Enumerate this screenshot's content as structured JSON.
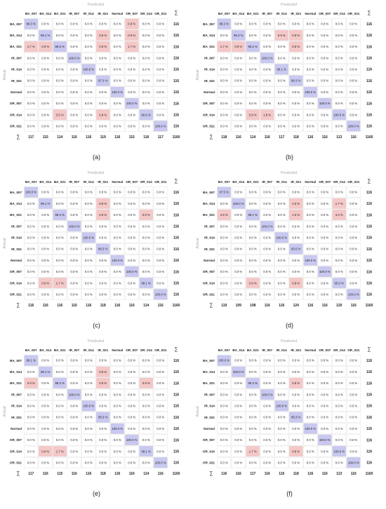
{
  "figure": {
    "classes": [
      "BA_007",
      "BA_014",
      "BA_021",
      "IR_007",
      "IR_014",
      "IR_021",
      "Normal",
      "OR_007",
      "OR_014",
      "OR_021"
    ],
    "predicted_label": "Predicted",
    "actual_label": "Actual",
    "sigma": "∑",
    "colors": {
      "diagonal": "#c8c8f0",
      "offdiagonal": "#f5c8c8",
      "grid": "#dddddd",
      "text": "#222222",
      "muted": "#aaaaaa"
    }
  },
  "chart_data": [
    {
      "type": "heatmap",
      "caption": "(a)",
      "title": "Predicted",
      "xlabel": "Predicted",
      "ylabel": "Actual",
      "values": [
        [
          "98.3 %",
          "0.0 %",
          "0.0 %",
          "0.0 %",
          "0.0 %",
          "0.0 %",
          "0.0 %",
          "0.9 %",
          "0.0 %",
          "0.0 %"
        ],
        [
          "0.0 %",
          "99.1 %",
          "0.0 %",
          "0.0 %",
          "0.0 %",
          "0.8 %",
          "0.0 %",
          "0.9 %",
          "0.0 %",
          "0.0 %"
        ],
        [
          "1.7 %",
          "0.9 %",
          "96.5 %",
          "0.0 %",
          "0.0 %",
          "0.8 %",
          "0.0 %",
          "1.7 %",
          "0.0 %",
          "0.0 %"
        ],
        [
          "0.0 %",
          "0.0 %",
          "0.0 %",
          "100.0 %",
          "0.0 %",
          "0.0 %",
          "0.0 %",
          "0.0 %",
          "0.0 %",
          "0.0 %"
        ],
        [
          "0.0 %",
          "0.0 %",
          "0.0 %",
          "0.0 %",
          "100.0 %",
          "0.0 %",
          "0.0 %",
          "0.0 %",
          "0.0 %",
          "0.0 %"
        ],
        [
          "0.0 %",
          "0.0 %",
          "0.0 %",
          "0.0 %",
          "0.0 %",
          "97.3 %",
          "0.0 %",
          "0.0 %",
          "0.0 %",
          "0.0 %"
        ],
        [
          "0.0 %",
          "0.0 %",
          "0.0 %",
          "0.0 %",
          "0.0 %",
          "0.0 %",
          "100.0 %",
          "0.0 %",
          "0.0 %",
          "0.0 %"
        ],
        [
          "0.0 %",
          "0.0 %",
          "0.0 %",
          "0.0 %",
          "0.0 %",
          "0.0 %",
          "0.0 %",
          "100.0 %",
          "0.0 %",
          "0.0 %"
        ],
        [
          "0.0 %",
          "0.0 %",
          "3.5 %",
          "0.0 %",
          "0.0 %",
          "0.8 %",
          "0.0 %",
          "0.0 %",
          "96.5 %",
          "0.0 %"
        ],
        [
          "0.0 %",
          "0.0 %",
          "0.0 %",
          "0.0 %",
          "0.0 %",
          "0.0 %",
          "0.0 %",
          "0.0 %",
          "0.0 %",
          "100.0 %"
        ]
      ],
      "row_totals": [
        "116",
        "116",
        "116",
        "116",
        "116",
        "116",
        "116",
        "116",
        "116",
        "116"
      ],
      "col_totals": [
        "117",
        "115",
        "114",
        "116",
        "116",
        "119",
        "116",
        "115",
        "116",
        "117"
      ],
      "grand_total": "1160"
    },
    {
      "type": "heatmap",
      "caption": "(b)",
      "title": "Predicted",
      "xlabel": "Predicted",
      "ylabel": "Actual",
      "values": [
        [
          "98.3 %",
          "0.0 %",
          "0.0 %",
          "0.0 %",
          "0.0 %",
          "0.0 %",
          "0.0 %",
          "0.0 %",
          "0.0 %",
          "0.0 %"
        ],
        [
          "0.0 %",
          "98.3 %",
          "0.0 %",
          "0.0 %",
          "0.9 %",
          "0.8 %",
          "0.0 %",
          "0.0 %",
          "0.0 %",
          "0.0 %"
        ],
        [
          "1.7 %",
          "0.9 %",
          "98.2 %",
          "0.0 %",
          "0.0 %",
          "0.8 %",
          "0.0 %",
          "0.0 %",
          "0.0 %",
          "0.0 %"
        ],
        [
          "0.0 %",
          "0.0 %",
          "0.0 %",
          "100.0 %",
          "0.0 %",
          "0.0 %",
          "0.0 %",
          "0.0 %",
          "0.0 %",
          "0.0 %"
        ],
        [
          "0.0 %",
          "0.0 %",
          "0.0 %",
          "0.0 %",
          "99.1 %",
          "0.0 %",
          "0.0 %",
          "0.0 %",
          "0.0 %",
          "0.0 %"
        ],
        [
          "0.0 %",
          "0.0 %",
          "0.0 %",
          "0.0 %",
          "0.0 %",
          "98.3 %",
          "0.0 %",
          "0.0 %",
          "0.0 %",
          "0.0 %"
        ],
        [
          "0.0 %",
          "0.0 %",
          "0.0 %",
          "0.0 %",
          "0.0 %",
          "0.0 %",
          "100.0 %",
          "0.0 %",
          "0.0 %",
          "0.0 %"
        ],
        [
          "0.0 %",
          "0.0 %",
          "0.0 %",
          "0.0 %",
          "0.0 %",
          "0.0 %",
          "0.0 %",
          "100.0 %",
          "0.0 %",
          "0.0 %"
        ],
        [
          "0.0 %",
          "0.0 %",
          "0.9 %",
          "1.8 %",
          "0.0 %",
          "0.0 %",
          "0.0 %",
          "0.0 %",
          "100.0 %",
          "0.0 %"
        ],
        [
          "0.0 %",
          "0.0 %",
          "0.0 %",
          "0.0 %",
          "0.0 %",
          "0.0 %",
          "0.0 %",
          "0.0 %",
          "0.0 %",
          "100.0 %"
        ]
      ],
      "row_totals": [
        "116",
        "116",
        "116",
        "116",
        "116",
        "116",
        "116",
        "116",
        "116",
        "116"
      ],
      "col_totals": [
        "118",
        "116",
        "114",
        "116",
        "117",
        "118",
        "116",
        "116",
        "113",
        "116"
      ],
      "grand_total": "1160"
    },
    {
      "type": "heatmap",
      "caption": "(c)",
      "title": "Predicted",
      "xlabel": "Predicted",
      "ylabel": "Actual",
      "values": [
        [
          "100.0 %",
          "0.0 %",
          "0.0 %",
          "0.0 %",
          "0.0 %",
          "0.0 %",
          "0.0 %",
          "0.0 %",
          "0.0 %",
          "0.0 %"
        ],
        [
          "0.0 %",
          "99.1 %",
          "0.0 %",
          "0.0 %",
          "0.0 %",
          "0.8 %",
          "0.0 %",
          "0.0 %",
          "0.0 %",
          "0.0 %"
        ],
        [
          "0.0 %",
          "0.0 %",
          "98.3 %",
          "0.0 %",
          "0.0 %",
          "0.8 %",
          "0.0 %",
          "0.0 %",
          "0.9 %",
          "0.0 %"
        ],
        [
          "0.0 %",
          "0.0 %",
          "0.0 %",
          "100.0 %",
          "0.0 %",
          "0.0 %",
          "0.0 %",
          "0.0 %",
          "0.0 %",
          "0.0 %"
        ],
        [
          "0.0 %",
          "0.0 %",
          "0.0 %",
          "0.0 %",
          "100.0 %",
          "0.0 %",
          "0.0 %",
          "0.0 %",
          "0.0 %",
          "0.0 %"
        ],
        [
          "0.0 %",
          "0.0 %",
          "0.0 %",
          "0.0 %",
          "0.0 %",
          "98.3 %",
          "0.0 %",
          "0.0 %",
          "0.0 %",
          "0.0 %"
        ],
        [
          "0.0 %",
          "0.0 %",
          "0.0 %",
          "0.0 %",
          "0.0 %",
          "0.0 %",
          "100.0 %",
          "0.0 %",
          "0.0 %",
          "0.0 %"
        ],
        [
          "0.0 %",
          "0.0 %",
          "0.0 %",
          "0.0 %",
          "0.0 %",
          "0.0 %",
          "0.0 %",
          "100.0 %",
          "0.0 %",
          "0.0 %"
        ],
        [
          "0.0 %",
          "0.9 %",
          "1.7 %",
          "0.0 %",
          "0.0 %",
          "0.0 %",
          "0.0 %",
          "0.0 %",
          "99.1 %",
          "0.0 %"
        ],
        [
          "0.0 %",
          "0.0 %",
          "0.0 %",
          "0.0 %",
          "0.0 %",
          "0.0 %",
          "0.0 %",
          "0.0 %",
          "0.0 %",
          "100.0 %"
        ]
      ],
      "row_totals": [
        "116",
        "116",
        "116",
        "116",
        "116",
        "116",
        "116",
        "116",
        "116",
        "116"
      ],
      "col_totals": [
        "116",
        "116",
        "116",
        "116",
        "116",
        "118",
        "116",
        "116",
        "114",
        "116"
      ],
      "grand_total": "1160"
    },
    {
      "type": "heatmap",
      "caption": "(d)",
      "title": "Predicted",
      "xlabel": "Predicted",
      "ylabel": "Actual",
      "values": [
        [
          "97.5 %",
          "0.0 %",
          "0.0 %",
          "0.0 %",
          "0.0 %",
          "0.0 %",
          "0.0 %",
          "0.0 %",
          "0.0 %",
          "0.0 %"
        ],
        [
          "0.0 %",
          "100.0 %",
          "0.0 %",
          "0.0 %",
          "0.0 %",
          "4.0 %",
          "0.0 %",
          "0.0 %",
          "1.7 %",
          "0.0 %"
        ],
        [
          "2.5 %",
          "0.0 %",
          "99.1 %",
          "0.0 %",
          "0.0 %",
          "1.6 %",
          "0.0 %",
          "0.0 %",
          "3.3 %",
          "0.0 %"
        ],
        [
          "0.0 %",
          "0.0 %",
          "0.0 %",
          "100.0 %",
          "0.0 %",
          "0.0 %",
          "0.0 %",
          "0.0 %",
          "0.0 %",
          "0.0 %"
        ],
        [
          "0.0 %",
          "0.0 %",
          "0.0 %",
          "0.0 %",
          "100.0 %",
          "0.0 %",
          "0.0 %",
          "0.0 %",
          "0.0 %",
          "0.0 %"
        ],
        [
          "0.0 %",
          "0.0 %",
          "0.0 %",
          "0.0 %",
          "0.0 %",
          "93.5 %",
          "0.0 %",
          "0.0 %",
          "0.0 %",
          "0.0 %"
        ],
        [
          "0.0 %",
          "0.0 %",
          "0.0 %",
          "0.0 %",
          "0.0 %",
          "0.0 %",
          "100.0 %",
          "0.0 %",
          "0.0 %",
          "0.0 %"
        ],
        [
          "0.0 %",
          "0.0 %",
          "0.0 %",
          "0.0 %",
          "0.0 %",
          "0.0 %",
          "0.0 %",
          "100.0 %",
          "0.0 %",
          "0.0 %"
        ],
        [
          "0.0 %",
          "0.0 %",
          "0.9 %",
          "0.0 %",
          "0.0 %",
          "0.8 %",
          "0.0 %",
          "0.0 %",
          "95.0 %",
          "0.0 %"
        ],
        [
          "0.0 %",
          "0.0 %",
          "0.0 %",
          "0.0 %",
          "0.0 %",
          "0.0 %",
          "0.0 %",
          "0.0 %",
          "0.0 %",
          "100.0 %"
        ]
      ],
      "row_totals": [
        "116",
        "116",
        "116",
        "116",
        "116",
        "116",
        "116",
        "116",
        "116",
        "116"
      ],
      "col_totals": [
        "119",
        "109",
        "108",
        "116",
        "116",
        "124",
        "116",
        "116",
        "120",
        "116"
      ],
      "grand_total": "1160"
    },
    {
      "type": "heatmap",
      "caption": "(e)",
      "title": "Predicted",
      "xlabel": "Predicted",
      "ylabel": "Actual",
      "values": [
        [
          "99.1 %",
          "0.0 %",
          "0.0 %",
          "0.0 %",
          "0.0 %",
          "0.0 %",
          "0.0 %",
          "0.0 %",
          "0.0 %",
          "0.0 %"
        ],
        [
          "0.0 %",
          "99.1 %",
          "0.0 %",
          "0.0 %",
          "0.0 %",
          "0.8 %",
          "0.0 %",
          "0.0 %",
          "0.0 %",
          "0.0 %"
        ],
        [
          "0.9 %",
          "0.0 %",
          "98.3 %",
          "0.0 %",
          "0.0 %",
          "0.8 %",
          "0.0 %",
          "0.0 %",
          "0.9 %",
          "0.0 %"
        ],
        [
          "0.0 %",
          "0.0 %",
          "0.0 %",
          "100.0 %",
          "0.0 %",
          "0.0 %",
          "0.0 %",
          "0.0 %",
          "0.0 %",
          "0.0 %"
        ],
        [
          "0.0 %",
          "0.0 %",
          "0.0 %",
          "0.0 %",
          "100.0 %",
          "0.0 %",
          "0.0 %",
          "0.0 %",
          "0.0 %",
          "0.0 %"
        ],
        [
          "0.0 %",
          "0.0 %",
          "0.0 %",
          "0.0 %",
          "0.0 %",
          "98.3 %",
          "0.0 %",
          "0.0 %",
          "0.0 %",
          "0.0 %"
        ],
        [
          "0.0 %",
          "0.0 %",
          "0.0 %",
          "0.0 %",
          "0.0 %",
          "0.0 %",
          "100.0 %",
          "0.0 %",
          "0.0 %",
          "0.0 %"
        ],
        [
          "0.0 %",
          "0.0 %",
          "0.0 %",
          "0.0 %",
          "0.0 %",
          "0.0 %",
          "0.0 %",
          "100.0 %",
          "0.0 %",
          "0.0 %"
        ],
        [
          "0.0 %",
          "0.9 %",
          "1.7 %",
          "0.0 %",
          "0.0 %",
          "0.0 %",
          "0.0 %",
          "0.0 %",
          "99.1 %",
          "0.0 %"
        ],
        [
          "0.0 %",
          "0.0 %",
          "0.0 %",
          "0.0 %",
          "0.0 %",
          "0.0 %",
          "0.0 %",
          "0.0 %",
          "0.0 %",
          "100.0 %"
        ]
      ],
      "row_totals": [
        "116",
        "116",
        "116",
        "116",
        "116",
        "116",
        "116",
        "116",
        "116",
        "116"
      ],
      "col_totals": [
        "117",
        "116",
        "115",
        "116",
        "116",
        "118",
        "116",
        "116",
        "114",
        "116"
      ],
      "grand_total": "1160"
    },
    {
      "type": "heatmap",
      "caption": "(f)",
      "title": "Predicted",
      "xlabel": "Predicted",
      "ylabel": "Actual",
      "values": [
        [
          "100.0 %",
          "0.0 %",
          "0.0 %",
          "0.0 %",
          "0.0 %",
          "0.0 %",
          "0.0 %",
          "0.0 %",
          "0.0 %",
          "0.0 %"
        ],
        [
          "0.0 %",
          "100.0 %",
          "0.0 %",
          "0.0 %",
          "0.0 %",
          "0.0 %",
          "0.0 %",
          "0.0 %",
          "0.0 %",
          "0.0 %"
        ],
        [
          "0.0 %",
          "0.0 %",
          "98.3 %",
          "0.0 %",
          "0.0 %",
          "0.8 %",
          "0.0 %",
          "0.0 %",
          "0.0 %",
          "0.0 %"
        ],
        [
          "0.0 %",
          "0.0 %",
          "0.0 %",
          "100.0 %",
          "0.0 %",
          "0.0 %",
          "0.0 %",
          "0.0 %",
          "0.0 %",
          "0.0 %"
        ],
        [
          "0.0 %",
          "0.0 %",
          "0.0 %",
          "0.0 %",
          "100.0 %",
          "0.0 %",
          "0.0 %",
          "0.0 %",
          "0.0 %",
          "0.0 %"
        ],
        [
          "0.0 %",
          "0.0 %",
          "0.0 %",
          "0.0 %",
          "0.0 %",
          "98.3 %",
          "0.0 %",
          "0.0 %",
          "0.0 %",
          "0.0 %"
        ],
        [
          "0.0 %",
          "0.0 %",
          "0.0 %",
          "0.0 %",
          "0.0 %",
          "0.0 %",
          "100.0 %",
          "0.0 %",
          "0.0 %",
          "0.0 %"
        ],
        [
          "0.0 %",
          "0.0 %",
          "0.0 %",
          "0.0 %",
          "0.0 %",
          "0.0 %",
          "0.0 %",
          "100.0 %",
          "0.0 %",
          "0.0 %"
        ],
        [
          "0.0 %",
          "0.0 %",
          "1.7 %",
          "0.0 %",
          "0.0 %",
          "0.8 %",
          "0.0 %",
          "0.0 %",
          "100.0 %",
          "0.0 %"
        ],
        [
          "0.0 %",
          "0.0 %",
          "0.0 %",
          "0.0 %",
          "0.0 %",
          "0.0 %",
          "0.0 %",
          "0.0 %",
          "0.0 %",
          "100.0 %"
        ]
      ],
      "row_totals": [
        "116",
        "116",
        "116",
        "116",
        "116",
        "116",
        "116",
        "116",
        "116",
        "116"
      ],
      "col_totals": [
        "116",
        "116",
        "117",
        "116",
        "116",
        "118",
        "116",
        "116",
        "113",
        "116"
      ],
      "grand_total": "1160"
    }
  ]
}
